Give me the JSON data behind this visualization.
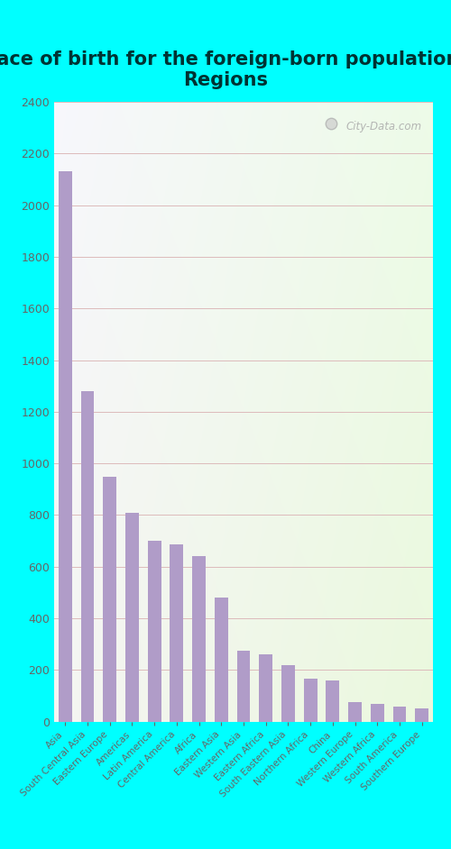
{
  "title": "Place of birth for the foreign-born population -\nRegions",
  "categories": [
    "Asia",
    "South Central Asia",
    "Eastern Europe",
    "Americas",
    "Latin America",
    "Central America",
    "Africa",
    "Eastern Asia",
    "Western Asia",
    "Eastern Africa",
    "South Eastern Asia",
    "Northern Africa",
    "China",
    "Western Europe",
    "Western Africa",
    "South America",
    "Southern Europe"
  ],
  "values": [
    2130,
    1280,
    950,
    810,
    700,
    685,
    640,
    480,
    275,
    260,
    220,
    165,
    160,
    75,
    70,
    60,
    50
  ],
  "bar_color": "#b09cc8",
  "title_fontsize": 15,
  "title_color": "#003333",
  "tick_color": "#666666",
  "background_figure": "#00ffff",
  "ylim": [
    0,
    2400
  ],
  "yticks": [
    0,
    200,
    400,
    600,
    800,
    1000,
    1200,
    1400,
    1600,
    1800,
    2000,
    2200,
    2400
  ],
  "grid_color": "#ddbbbb",
  "watermark_text": "City-Data.com",
  "watermark_color": "#aaaaaa"
}
